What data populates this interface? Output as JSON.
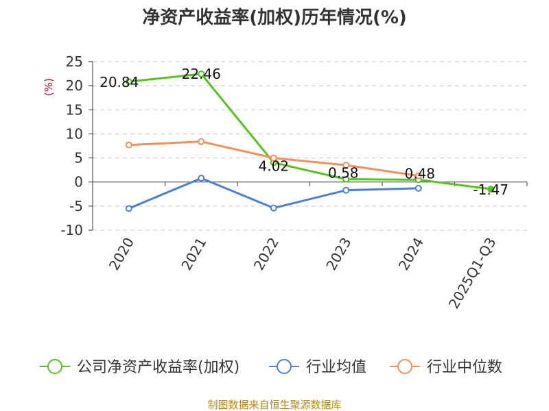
{
  "colors": {
    "company": "#52c41a",
    "industry_avg": "#4a7fd8",
    "industry_median": "#f39057",
    "unit": "#d0021b",
    "source": "#b8860b"
  },
  "chart_data": {
    "type": "line",
    "title": "净资产收益率(加权)历年情况(%)",
    "ylabel": "(%)",
    "categories": [
      "2020",
      "2021",
      "2022",
      "2023",
      "2024",
      "2025Q1-Q3"
    ],
    "ylim": [
      -10,
      25
    ],
    "yticks": [
      25,
      20,
      15,
      10,
      5,
      0,
      -5,
      -10
    ],
    "grid": true,
    "legend_position": "bottom",
    "series": [
      {
        "name": "公司净资产收益率(加权)",
        "values": [
          20.84,
          22.46,
          4.02,
          0.58,
          0.48,
          -1.47
        ],
        "labels": [
          "20.84",
          "22.46",
          "4.02",
          "0.58",
          "0.48",
          "-1.47"
        ]
      },
      {
        "name": "行业均值",
        "values": [
          -5.5,
          0.8,
          -5.4,
          -1.7,
          -1.3,
          null
        ]
      },
      {
        "name": "行业中位数",
        "values": [
          7.7,
          8.4,
          5.0,
          3.5,
          1.3,
          null
        ]
      }
    ],
    "source": "制图数据来自恒生聚源数据库"
  }
}
